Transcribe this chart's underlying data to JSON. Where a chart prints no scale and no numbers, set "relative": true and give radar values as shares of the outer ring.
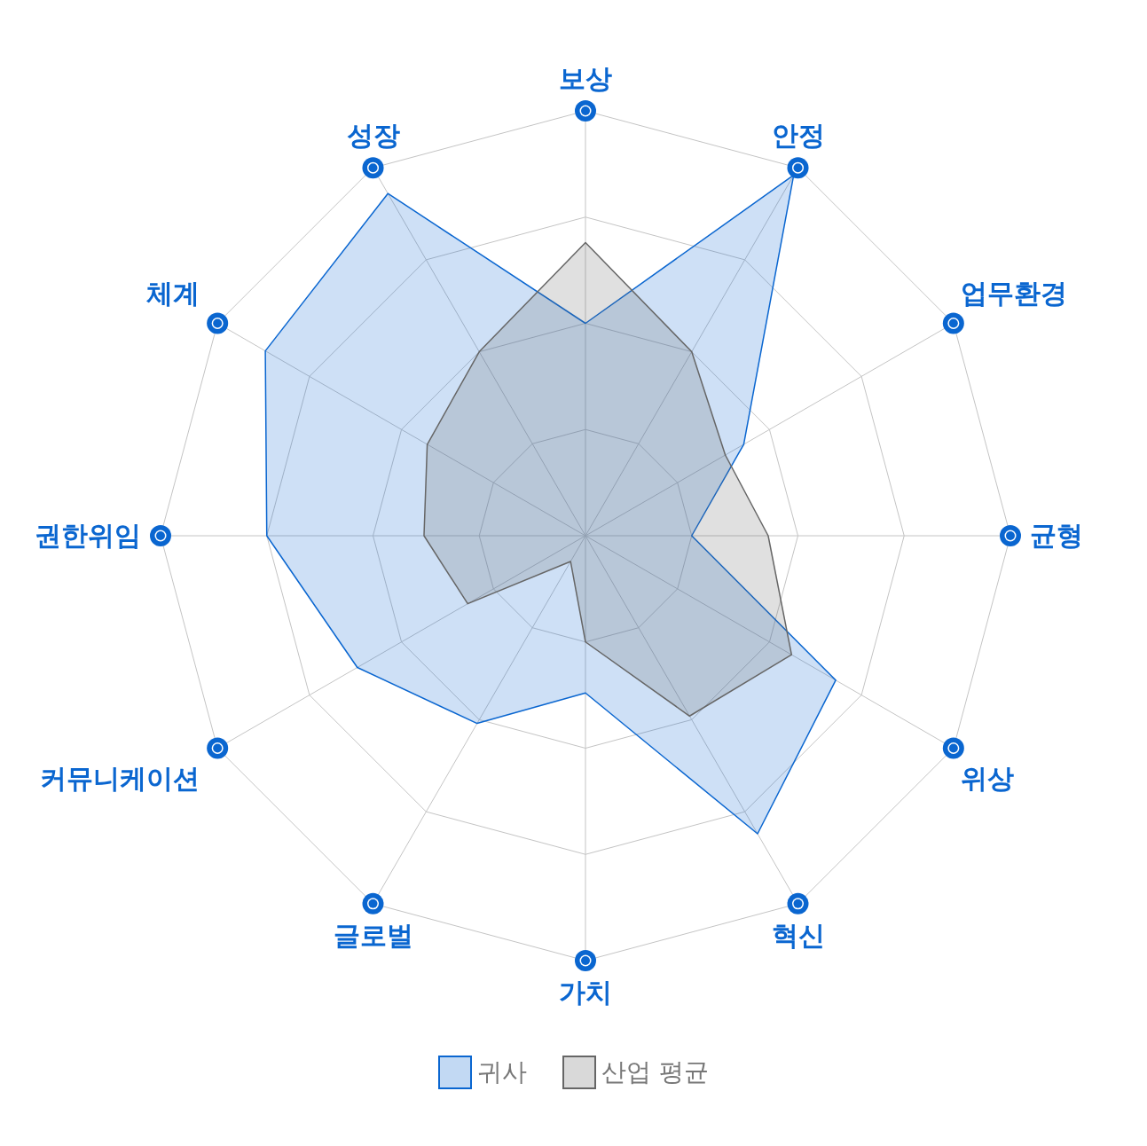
{
  "chart_data": {
    "type": "radar",
    "relative": true,
    "grid": true,
    "legend": "bottom",
    "marker": "none",
    "categories": [
      "보상",
      "안정",
      "업무환경",
      "균형",
      "위상",
      "혁신",
      "가치",
      "글로벌",
      "커뮤니케이션",
      "권한위임",
      "체계",
      "성장"
    ],
    "series": [
      {
        "name": "귀사",
        "color": "#0a66d0",
        "values": [
          0.5,
          0.98,
          0.43,
          0.25,
          0.68,
          0.81,
          0.37,
          0.51,
          0.62,
          0.75,
          0.87,
          0.93
        ]
      },
      {
        "name": "산업 평균",
        "color": "#666666",
        "values": [
          0.69,
          0.5,
          0.38,
          0.43,
          0.56,
          0.49,
          0.25,
          0.07,
          0.32,
          0.38,
          0.43,
          0.5
        ]
      }
    ]
  }
}
